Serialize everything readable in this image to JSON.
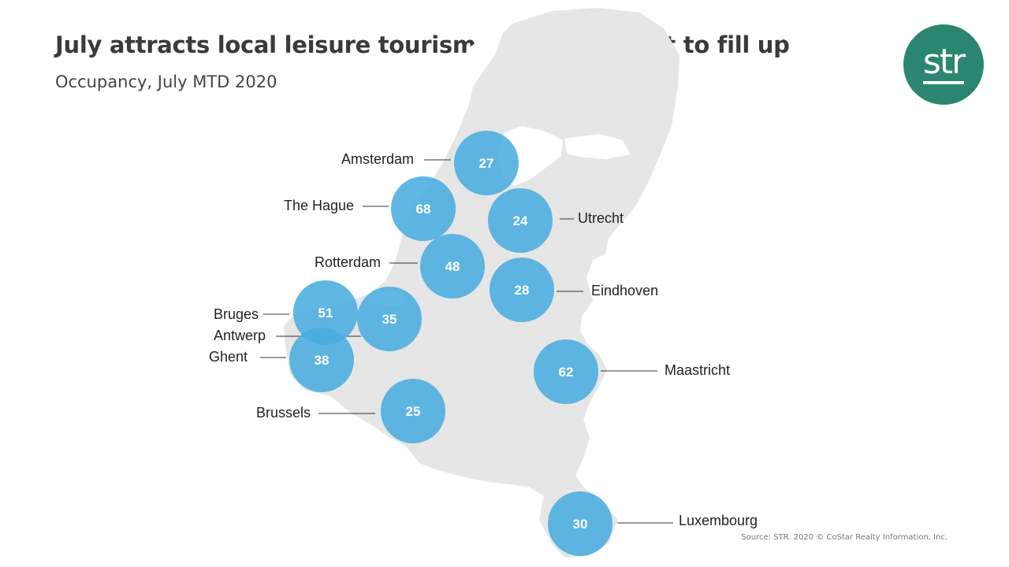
{
  "header": {
    "title": "July attracts local leisure tourism, as hotels start to fill up",
    "subtitle": "Occupancy, July MTD 2020"
  },
  "logo": {
    "text": "str",
    "color": "#2a8670"
  },
  "colors": {
    "land": "#e6e6e6",
    "marker": "#4aaddf",
    "marker_text": "#ffffff",
    "leader": "#333333"
  },
  "chart_data": {
    "type": "map",
    "metric": "Occupancy",
    "cities": [
      {
        "name": "Amsterdam",
        "value": 27
      },
      {
        "name": "The Hague",
        "value": 68
      },
      {
        "name": "Utrecht",
        "value": 24
      },
      {
        "name": "Rotterdam",
        "value": 48
      },
      {
        "name": "Eindhoven",
        "value": 28
      },
      {
        "name": "Bruges",
        "value": 51
      },
      {
        "name": "Antwerp",
        "value": 35
      },
      {
        "name": "Ghent",
        "value": 38
      },
      {
        "name": "Maastricht",
        "value": 62
      },
      {
        "name": "Brussels",
        "value": 25
      },
      {
        "name": "Luxembourg",
        "value": 30
      }
    ]
  },
  "footer": {
    "source": "Source: STR. 2020 © CoStar Realty Information, Inc."
  }
}
